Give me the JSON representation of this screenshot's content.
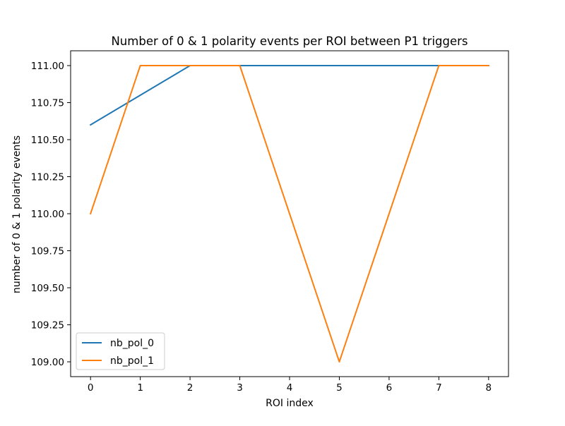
{
  "chart_data": {
    "type": "line",
    "title": "Number of 0 & 1 polarity events per ROI between P1 triggers",
    "xlabel": "ROI index",
    "ylabel": "number of 0 & 1 polarity events",
    "xlim": [
      -0.4,
      8.4
    ],
    "ylim": [
      108.9,
      111.1
    ],
    "x_ticks": [
      0,
      1,
      2,
      3,
      4,
      5,
      6,
      7,
      8
    ],
    "y_ticks": [
      109.0,
      109.25,
      109.5,
      109.75,
      110.0,
      110.25,
      110.5,
      110.75,
      111.0
    ],
    "x_tick_labels": [
      "0",
      "1",
      "2",
      "3",
      "4",
      "5",
      "6",
      "7",
      "8"
    ],
    "y_tick_labels": [
      "109.00",
      "109.25",
      "109.50",
      "109.75",
      "110.00",
      "110.25",
      "110.50",
      "110.75",
      "111.00"
    ],
    "grid": false,
    "legend_position": "lower-left",
    "series": [
      {
        "name": "nb_pol_0",
        "color": "#1f77b4",
        "x": [
          0,
          1,
          2,
          3,
          4,
          5,
          6,
          7,
          8
        ],
        "values": [
          110.6,
          110.8,
          111.0,
          111.0,
          111.0,
          111.0,
          111.0,
          111.0,
          111.0
        ]
      },
      {
        "name": "nb_pol_1",
        "color": "#ff7f0e",
        "x": [
          0,
          1,
          2,
          3,
          4,
          5,
          6,
          7,
          8
        ],
        "values": [
          110.0,
          111.0,
          111.0,
          111.0,
          110.0,
          109.0,
          110.0,
          111.0,
          111.0
        ]
      }
    ]
  }
}
